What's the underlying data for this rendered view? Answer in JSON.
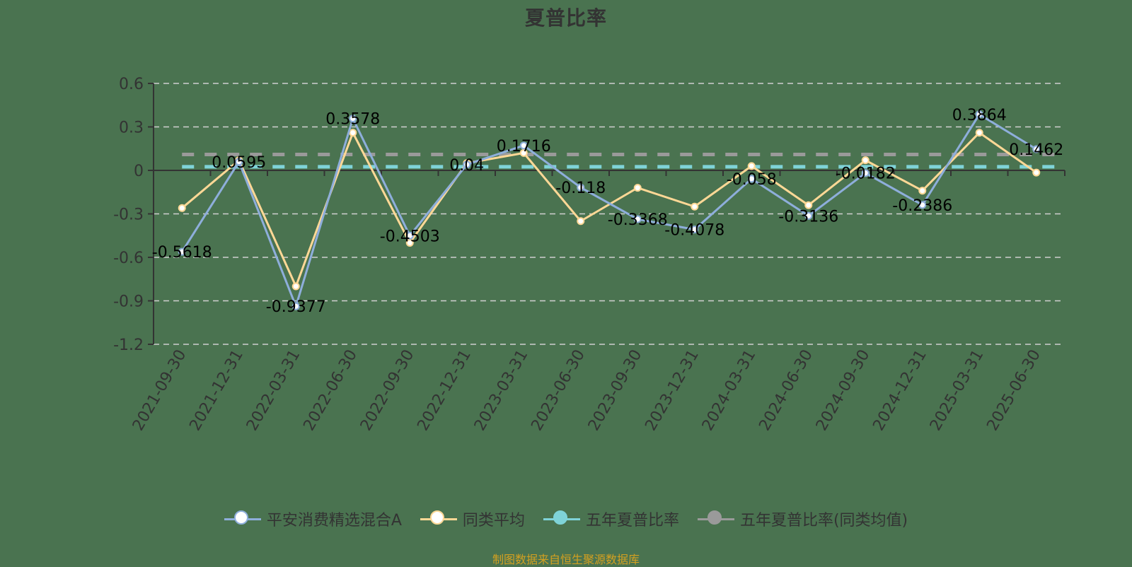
{
  "title": "夏普比率",
  "footer": "制图数据来自恒生聚源数据库",
  "colors": {
    "background": "#4a7350",
    "fund": "#8eaedb",
    "peer": "#ffd896",
    "five_year": "#7fd3d8",
    "five_year_peer": "#9a9a9a",
    "axis": "#333333",
    "grid": "#d0d0d0",
    "footer": "#d4a020"
  },
  "legend": [
    {
      "label": "平安消费精选混合A",
      "color": "#8eaedb",
      "icon": "circle-outline-icon",
      "fill": "#ffffff"
    },
    {
      "label": "同类平均",
      "color": "#ffd896",
      "icon": "circle-outline-icon",
      "fill": "#ffffff"
    },
    {
      "label": "五年夏普比率",
      "color": "#7fd3d8",
      "icon": "circle-filled-icon",
      "fill": "#7fd3d8"
    },
    {
      "label": "五年夏普比率(同类均值)",
      "color": "#9a9a9a",
      "icon": "circle-filled-icon",
      "fill": "#9a9a9a"
    }
  ],
  "chart_data": {
    "type": "line",
    "title": "夏普比率",
    "xlabel": "",
    "ylabel": "",
    "ylim": [
      -1.2,
      0.6
    ],
    "yticks": [
      0.6,
      0.3,
      0,
      -0.3,
      -0.6,
      -0.9,
      -1.2
    ],
    "grid": true,
    "legend_position": "bottom",
    "categories": [
      "2021-09-30",
      "2021-12-31",
      "2022-03-31",
      "2022-06-30",
      "2022-09-30",
      "2022-12-31",
      "2023-03-31",
      "2023-06-30",
      "2023-09-30",
      "2023-12-31",
      "2024-03-31",
      "2024-06-30",
      "2024-09-30",
      "2024-12-31",
      "2025-03-31",
      "2025-06-30"
    ],
    "series": [
      {
        "name": "平安消费精选混合A",
        "color": "#8eaedb",
        "labeled": true,
        "values": [
          -0.5618,
          0.0595,
          -0.9377,
          0.3578,
          -0.4503,
          0.04,
          0.1716,
          -0.118,
          -0.3368,
          -0.4078,
          -0.058,
          -0.3136,
          -0.0182,
          -0.2386,
          0.3864,
          0.1462
        ]
      },
      {
        "name": "同类平均",
        "color": "#ffd896",
        "labeled": false,
        "values": [
          -0.26,
          0.07,
          -0.8,
          0.26,
          -0.5,
          0.05,
          0.12,
          -0.35,
          -0.12,
          -0.25,
          0.03,
          -0.24,
          0.07,
          -0.14,
          0.26,
          -0.015
        ]
      },
      {
        "name": "五年夏普比率",
        "color": "#7fd3d8",
        "type": "reference",
        "dashed": true,
        "value": 0.025
      },
      {
        "name": "五年夏普比率(同类均值)",
        "color": "#9a9a9a",
        "type": "reference",
        "dashed": true,
        "value": 0.11
      }
    ]
  }
}
